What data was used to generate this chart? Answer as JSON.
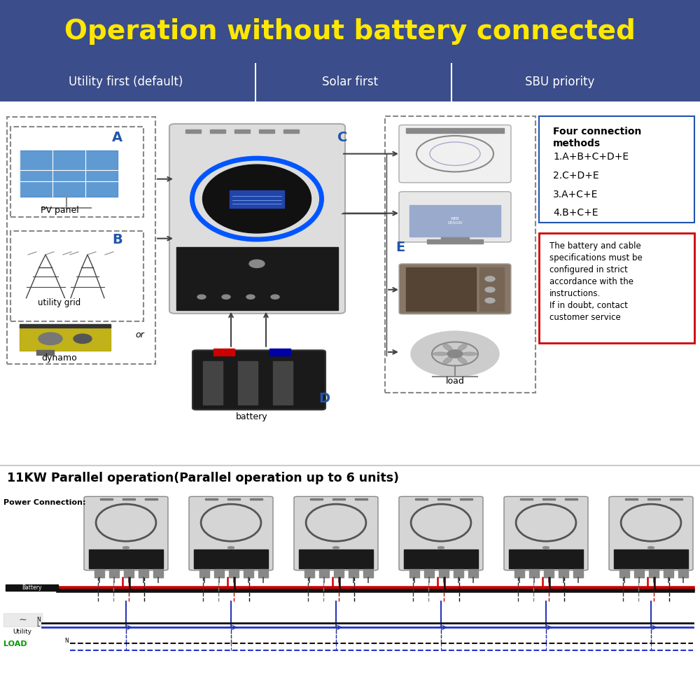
{
  "title": "Operation without battery connected",
  "title_color": "#FFE800",
  "title_bg": "#3B4D8A",
  "header_bg": "#3B4D8A",
  "header_text_color": "#FFFFFF",
  "header_labels": [
    "Utility first (default)",
    "Solar first",
    "SBU priority"
  ],
  "main_bg": "#FFFFFF",
  "bottom_bg": "#FFFFFF",
  "label_A": "A",
  "label_B": "B",
  "label_C": "C",
  "label_D": "D",
  "label_E": "E",
  "text_pv": "PV panel",
  "text_utility": "utility grid",
  "text_dynamo": "dynamo",
  "text_battery": "battery",
  "text_load": "load",
  "text_or": "or",
  "connection_title": "Four connection\nmethods",
  "connection_list": [
    "1.A+B+C+D+E",
    "2.C+D+E",
    "3.A+C+E",
    "4.B+C+E"
  ],
  "warning_text": "The battery and cable\nspecifications must be\nconfigured in strict\naccordance with the\ninstructions.\nIf in doubt, contact\ncustomer service",
  "parallel_title": "11KW Parallel operation(Parallel operation up to 6 units)",
  "power_connection": "Power Connection:",
  "battery_label": "Battery",
  "utility_label": "Utility",
  "load_label": "LOAD"
}
